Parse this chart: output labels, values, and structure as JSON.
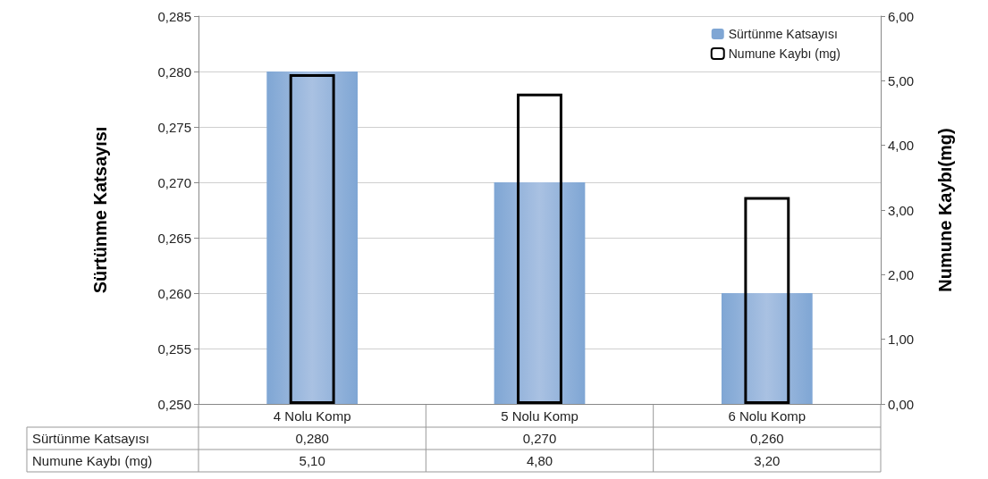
{
  "chart_data": {
    "type": "bar",
    "categories": [
      "4 Nolu Komp",
      "5 Nolu Komp",
      "6 Nolu Komp"
    ],
    "ylabel": "Sürtünme Katsayısı",
    "y2label": "Numune Kaybı(mg)",
    "ylim": [
      0.25,
      0.285
    ],
    "yticks": [
      {
        "value": 0.25,
        "label": "0,250"
      },
      {
        "value": 0.255,
        "label": "0,255"
      },
      {
        "value": 0.26,
        "label": "0,260"
      },
      {
        "value": 0.265,
        "label": "0,265"
      },
      {
        "value": 0.27,
        "label": "0,270"
      },
      {
        "value": 0.275,
        "label": "0,275"
      },
      {
        "value": 0.28,
        "label": "0,280"
      },
      {
        "value": 0.285,
        "label": "0,285"
      }
    ],
    "y2lim": [
      0,
      6
    ],
    "y2ticks": [
      {
        "value": 0,
        "label": "0,00"
      },
      {
        "value": 1,
        "label": "1,00"
      },
      {
        "value": 2,
        "label": "2,00"
      },
      {
        "value": 3,
        "label": "3,00"
      },
      {
        "value": 4,
        "label": "4,00"
      },
      {
        "value": 5,
        "label": "5,00"
      },
      {
        "value": 6,
        "label": "6,00"
      }
    ],
    "series": [
      {
        "name": "Sürtünme Katsayısı",
        "color": "#7fa6d4",
        "values": [
          0.28,
          0.27,
          0.26
        ],
        "value_labels": [
          "0,280",
          "0,270",
          "0,260"
        ]
      },
      {
        "name": "Numune Kaybı (mg)",
        "color": "#000000",
        "axis": "y2",
        "values": [
          5.1,
          4.8,
          3.2
        ],
        "value_labels": [
          "5,10",
          "4,80",
          "3,20"
        ]
      }
    ],
    "grid": "y",
    "legend": "top right"
  }
}
